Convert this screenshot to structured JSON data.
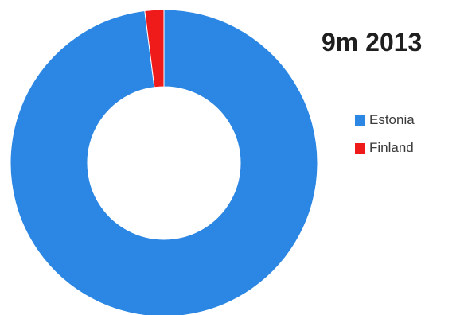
{
  "chart_data": {
    "type": "pie",
    "title": "9m 2013",
    "donut": true,
    "categories": [
      "Estonia",
      "Finland"
    ],
    "values": [
      98,
      2
    ],
    "colors": [
      "#2b87e3",
      "#ef1a1a"
    ],
    "legend_position": "right"
  }
}
